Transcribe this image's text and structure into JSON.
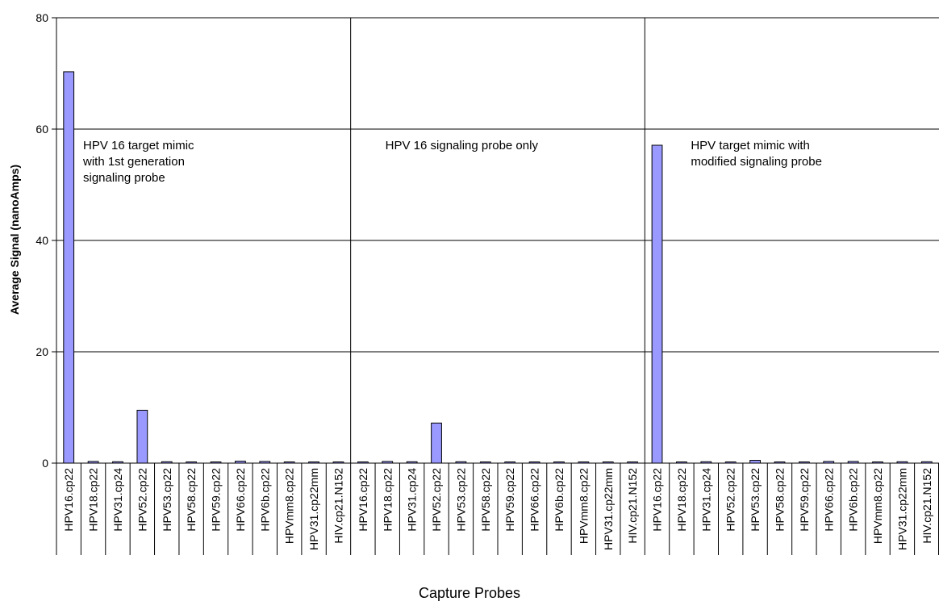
{
  "chart_data": {
    "type": "bar",
    "title": "",
    "xlabel": "Capture Probes",
    "ylabel": "Average Signal (nanoAmps)",
    "ylim": [
      0,
      80
    ],
    "yticks": [
      0,
      20,
      40,
      60,
      80
    ],
    "grid": true,
    "bar_color": "#9999ff",
    "bar_edge_color": "#000000",
    "groups": [
      {
        "annotation": [
          "HPV 16 target mimic",
          "with 1st generation",
          "signaling probe"
        ],
        "categories": [
          "HPV16.cp22",
          "HPV18.cp22",
          "HPV31.cp24",
          "HPV52.cp22",
          "HPV53.cp22",
          "HPV58.cp22",
          "HPV59.cp22",
          "HPV66.cp22",
          "HPV6b.cp22",
          "HPVmm8.cp22",
          "HPV31.cp22mm",
          "HIV.cp21.N152"
        ],
        "values": [
          70.3,
          0.3,
          0.25,
          9.5,
          0.25,
          0.15,
          0.2,
          0.35,
          0.3,
          0.2,
          0.15,
          0.2
        ]
      },
      {
        "annotation": [
          "HPV 16 signaling probe only"
        ],
        "categories": [
          "HPV16.cp22",
          "HPV18.cp22",
          "HPV31.cp24",
          "HPV52.cp22",
          "HPV53.cp22",
          "HPV58.cp22",
          "HPV59.cp22",
          "HPV66.cp22",
          "HPV6b.cp22",
          "HPVmm8.cp22",
          "HPV31.cp22mm",
          "HIV.cp21.N152"
        ],
        "values": [
          0.2,
          0.3,
          0.25,
          7.2,
          0.25,
          0.1,
          0.15,
          0.2,
          0.2,
          0.15,
          0.2,
          0.2
        ]
      },
      {
        "annotation": [
          "HPV target mimic with",
          "modified signaling probe"
        ],
        "categories": [
          "HPV16.cp22",
          "HPV18.cp22",
          "HPV31.cp24",
          "HPV52.cp22",
          "HPV53.cp22",
          "HPV58.cp22",
          "HPV59.cp22",
          "HPV66.cp22",
          "HPV6b.cp22",
          "HPVmm8.cp22",
          "HPV31.cp22mm",
          "HIV.cp21.N152"
        ],
        "values": [
          57.1,
          0.2,
          0.25,
          0.2,
          0.5,
          0.15,
          0.2,
          0.3,
          0.3,
          0.2,
          0.25,
          0.25
        ]
      }
    ]
  }
}
